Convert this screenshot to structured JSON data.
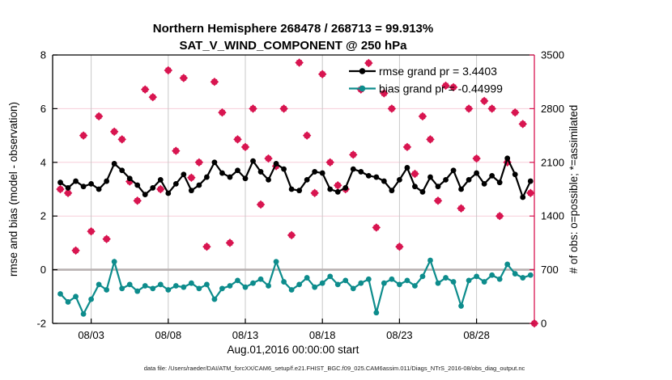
{
  "colors": {
    "rmse": "#000000",
    "bias": "#0d8c8c",
    "obs": "#d81550",
    "right_axis": "#d81550",
    "left_axis": "#000000",
    "legend_text": "#1a2ae0",
    "grid_vertical": "#c8c8c8",
    "grid_horizontal": "#f7cdd9",
    "zero_line": "#b8b0b0"
  },
  "footer": {
    "text": "data file: /Users/raeder/DAI/ATM_forcXX/CAM6_setup/f.e21.FHIST_BGC.f09_025.CAM6assim.011/Diags_NTrS_2016-08/obs_diag_output.nc"
  },
  "chart_data": {
    "type": "line+scatter",
    "title_line1": "Northern Hemisphere 268478 / 268713 = 99.913%",
    "title_line2": "SAT_V_WIND_COMPONENT @ 250 hPa",
    "xlabel": "Aug.01,2016 00:00:00 start",
    "ylabel_left": "rmse and bias (model - observation)",
    "ylabel_right": "# of obs: o=possible; *=assimilated",
    "xlim_days": [
      0.5,
      31.75
    ],
    "ylim_left": [
      -2,
      8
    ],
    "ylim_right": [
      0,
      3500
    ],
    "left_ticks": [
      -2,
      0,
      2,
      4,
      6,
      8
    ],
    "right_ticks": [
      0,
      700,
      1400,
      2100,
      2800,
      3500
    ],
    "x_ticks": [
      {
        "day": 3,
        "label": "08/03"
      },
      {
        "day": 8,
        "label": "08/08"
      },
      {
        "day": 13,
        "label": "08/13"
      },
      {
        "day": 18,
        "label": "08/18"
      },
      {
        "day": 23,
        "label": "08/23"
      },
      {
        "day": 28,
        "label": "08/28"
      }
    ],
    "x_start_day": 1,
    "x_step_days": 0.5,
    "grid": true,
    "zero_line_left_value": 0,
    "legend": [
      {
        "series": "rmse",
        "label": "rmse grand pr = 3.4403"
      },
      {
        "series": "bias",
        "label": "bias grand pr = -0.44999"
      }
    ],
    "series": [
      {
        "name": "rmse",
        "axis": "left",
        "marker": "circle",
        "grand_value": 3.4403,
        "values": [
          3.25,
          3.05,
          3.3,
          3.1,
          3.2,
          3.0,
          3.3,
          3.95,
          3.7,
          3.4,
          3.15,
          2.8,
          3.05,
          3.35,
          2.85,
          3.2,
          3.55,
          2.95,
          3.15,
          3.45,
          4.0,
          3.6,
          3.45,
          3.7,
          3.4,
          4.05,
          3.65,
          3.35,
          3.95,
          3.75,
          3.0,
          2.95,
          3.35,
          3.65,
          3.6,
          3.0,
          2.9,
          3.05,
          3.75,
          3.65,
          3.5,
          3.45,
          3.3,
          2.95,
          3.35,
          3.8,
          3.1,
          2.9,
          3.45,
          3.1,
          3.35,
          3.7,
          3.0,
          3.35,
          3.6,
          3.2,
          3.5,
          3.25,
          4.15,
          3.55,
          2.7,
          3.3
        ]
      },
      {
        "name": "bias",
        "axis": "left",
        "marker": "circle",
        "grand_value": -0.44999,
        "values": [
          -0.9,
          -1.2,
          -1.0,
          -1.65,
          -1.1,
          -0.55,
          -0.75,
          0.3,
          -0.7,
          -0.55,
          -0.8,
          -0.6,
          -0.7,
          -0.55,
          -0.75,
          -0.6,
          -0.65,
          -0.5,
          -0.7,
          -0.55,
          -1.1,
          -0.7,
          -0.6,
          -0.4,
          -0.65,
          -0.5,
          -0.35,
          -0.6,
          0.3,
          -0.45,
          -0.75,
          -0.55,
          -0.3,
          -0.65,
          -0.5,
          -0.25,
          -0.55,
          -0.4,
          -0.7,
          -0.5,
          -0.35,
          -1.6,
          -0.5,
          -0.35,
          -0.55,
          -0.4,
          -0.6,
          -0.25,
          0.35,
          -0.5,
          -0.3,
          -0.45,
          -1.35,
          -0.4,
          -0.25,
          -0.45,
          -0.2,
          -0.35,
          0.2,
          -0.15,
          -0.3,
          -0.2
        ]
      },
      {
        "name": "obs_count",
        "axis": "right",
        "marker": "star",
        "note": "o=possible and *=assimilated markers overlap (99.913% assimilated)",
        "values": [
          1750,
          1700,
          950,
          2450,
          1200,
          2700,
          1100,
          2500,
          2400,
          1850,
          1600,
          3050,
          2950,
          1750,
          3300,
          2250,
          3200,
          1900,
          2100,
          1000,
          3150,
          2750,
          1050,
          2400,
          2300,
          2800,
          1550,
          2150,
          2050,
          2800,
          1150,
          3400,
          2450,
          1700,
          3250,
          2100,
          1800,
          1750,
          2200,
          3050,
          3395,
          1250,
          3000,
          2800,
          1000,
          2300,
          1950,
          2700,
          2400,
          1600,
          3100,
          3080,
          1500,
          2800,
          2150,
          2900,
          2800,
          1400,
          2100,
          2750,
          2600,
          1700
        ],
        "extra_point": {
          "day": 31.75,
          "value": 0
        }
      }
    ]
  }
}
